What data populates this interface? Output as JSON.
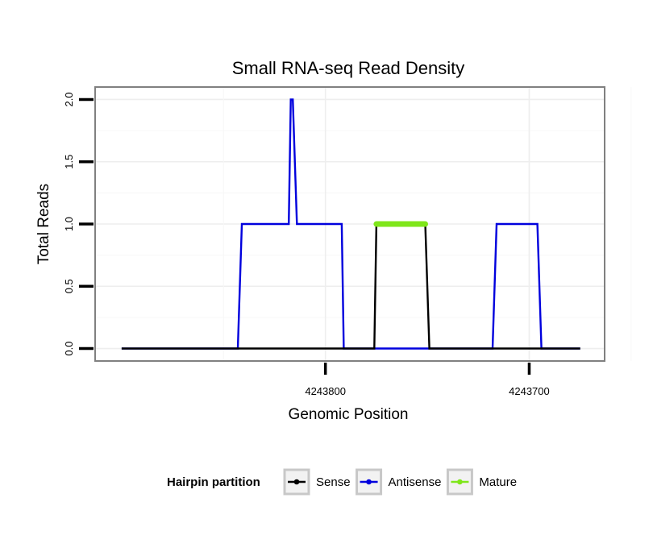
{
  "chart_data": {
    "type": "line",
    "title": "Small RNA-seq Read Density",
    "xlabel": "Genomic Position",
    "ylabel": "Total Reads",
    "x_reversed": true,
    "xlim": [
      4243913,
      4243663
    ],
    "ylim": [
      -0.1,
      2.1
    ],
    "x_ticks": [
      {
        "value": 4243800,
        "label": "4243800"
      },
      {
        "value": 4243700,
        "label": "4243700"
      }
    ],
    "y_ticks": [
      {
        "value": 0.0,
        "label": "0.0"
      },
      {
        "value": 0.5,
        "label": "0.5"
      },
      {
        "value": 1.0,
        "label": "1.0"
      },
      {
        "value": 1.5,
        "label": "1.5"
      },
      {
        "value": 2.0,
        "label": "2.0"
      }
    ],
    "grid": true,
    "legend_position": "bottom",
    "legend_title": "Hairpin partition",
    "series": [
      {
        "name": "Antisense",
        "color": "#0000dd",
        "points": [
          [
            4243900,
            0
          ],
          [
            4243843,
            0
          ],
          [
            4243841,
            1
          ],
          [
            4243818,
            1
          ],
          [
            4243817,
            2
          ],
          [
            4243816,
            2
          ],
          [
            4243814,
            1
          ],
          [
            4243792,
            1
          ],
          [
            4243791,
            0
          ],
          [
            4243718,
            0
          ],
          [
            4243716,
            1
          ],
          [
            4243696,
            1
          ],
          [
            4243694,
            0
          ],
          [
            4243675,
            0
          ]
        ]
      },
      {
        "name": "Sense",
        "color": "#000000",
        "points": [
          [
            4243900,
            0
          ],
          [
            4243776,
            0
          ],
          [
            4243775,
            1
          ],
          [
            4243751,
            1
          ],
          [
            4243749,
            0
          ],
          [
            4243675,
            0
          ]
        ]
      },
      {
        "name": "Mature",
        "color": "#7fe61a",
        "thick": true,
        "points": [
          [
            4243775,
            1
          ],
          [
            4243751,
            1
          ]
        ]
      }
    ],
    "legend_entries": [
      {
        "name": "Sense",
        "color": "#000000"
      },
      {
        "name": "Antisense",
        "color": "#0000dd"
      },
      {
        "name": "Mature",
        "color": "#7fe61a"
      }
    ]
  }
}
